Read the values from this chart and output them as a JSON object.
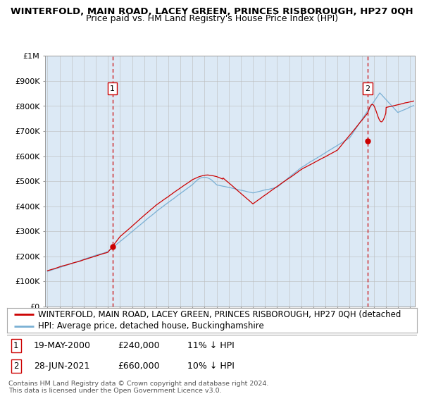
{
  "title": "WINTERFOLD, MAIN ROAD, LACEY GREEN, PRINCES RISBOROUGH, HP27 0QH",
  "subtitle": "Price paid vs. HM Land Registry's House Price Index (HPI)",
  "background_color": "#ffffff",
  "plot_bg_color": "#dce9f5",
  "x_start_year": 1995,
  "x_end_year": 2025,
  "y_min": 0,
  "y_max": 1000000,
  "y_ticks": [
    0,
    100000,
    200000,
    300000,
    400000,
    500000,
    600000,
    700000,
    800000,
    900000,
    1000000
  ],
  "y_tick_labels": [
    "£0",
    "£100K",
    "£200K",
    "£300K",
    "£400K",
    "£500K",
    "£600K",
    "£700K",
    "£800K",
    "£900K",
    "£1M"
  ],
  "sale1_year": 2000.38,
  "sale1_price": 240000,
  "sale1_label": "1",
  "sale2_year": 2021.49,
  "sale2_price": 660000,
  "sale2_label": "2",
  "legend_red_label": "WINTERFOLD, MAIN ROAD, LACEY GREEN, PRINCES RISBOROUGH, HP27 0QH (detached",
  "legend_blue_label": "HPI: Average price, detached house, Buckinghamshire",
  "annotation1_date": "19-MAY-2000",
  "annotation1_price": "£240,000",
  "annotation1_hpi": "11% ↓ HPI",
  "annotation2_date": "28-JUN-2021",
  "annotation2_price": "£660,000",
  "annotation2_hpi": "10% ↓ HPI",
  "footer": "Contains HM Land Registry data © Crown copyright and database right 2024.\nThis data is licensed under the Open Government Licence v3.0.",
  "red_color": "#cc0000",
  "blue_color": "#7ab0d4",
  "dashed_line_color": "#cc0000",
  "grid_color": "#bbbbbb",
  "title_fontsize": 9.5,
  "subtitle_fontsize": 9.0,
  "axis_fontsize": 8.0,
  "legend_fontsize": 8.5,
  "annotation_fontsize": 9.0
}
